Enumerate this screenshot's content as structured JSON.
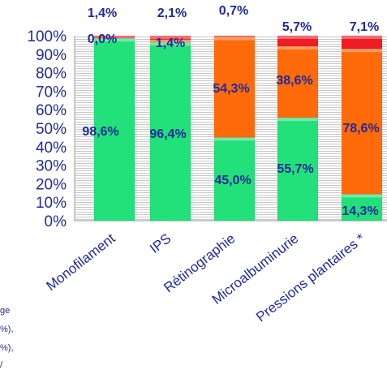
{
  "chart_data": {
    "type": "bar",
    "stacked": true,
    "categories": [
      "Monofilament",
      "IPS",
      "Rétinographie",
      "Microalbuminurie",
      "Pressions plantaires *"
    ],
    "series": [
      {
        "values": [
          98.6,
          96.4,
          45.0,
          55.7,
          14.3
        ],
        "labels": [
          "98,6%",
          "96,4%",
          "45,0%",
          "55,7%",
          "14,3%"
        ],
        "color": "#22e07a"
      },
      {
        "values": [
          0.0,
          1.4,
          54.3,
          38.6,
          78.6
        ],
        "labels": [
          "0,0%",
          "1,4%",
          "54,3%",
          "38,6%",
          "78,6%"
        ],
        "color": "#ff6a0a"
      },
      {
        "values": [
          1.4,
          2.1,
          0.7,
          5.7,
          7.1
        ],
        "labels": [
          "1,4%",
          "2,1%",
          "0,7%",
          "5,7%",
          "7,1%"
        ],
        "color": "#ee1c24"
      }
    ],
    "ylim": [
      0,
      100
    ],
    "yticks": [
      "0%",
      "10%",
      "20%",
      "30%",
      "40%",
      "50%",
      "60%",
      "70%",
      "80%",
      "90%",
      "100%"
    ],
    "grid": true,
    "xlabel": "",
    "ylabel": "",
    "title": ""
  },
  "notes": [
    "ge",
    "%),",
    "%),",
    "/"
  ]
}
